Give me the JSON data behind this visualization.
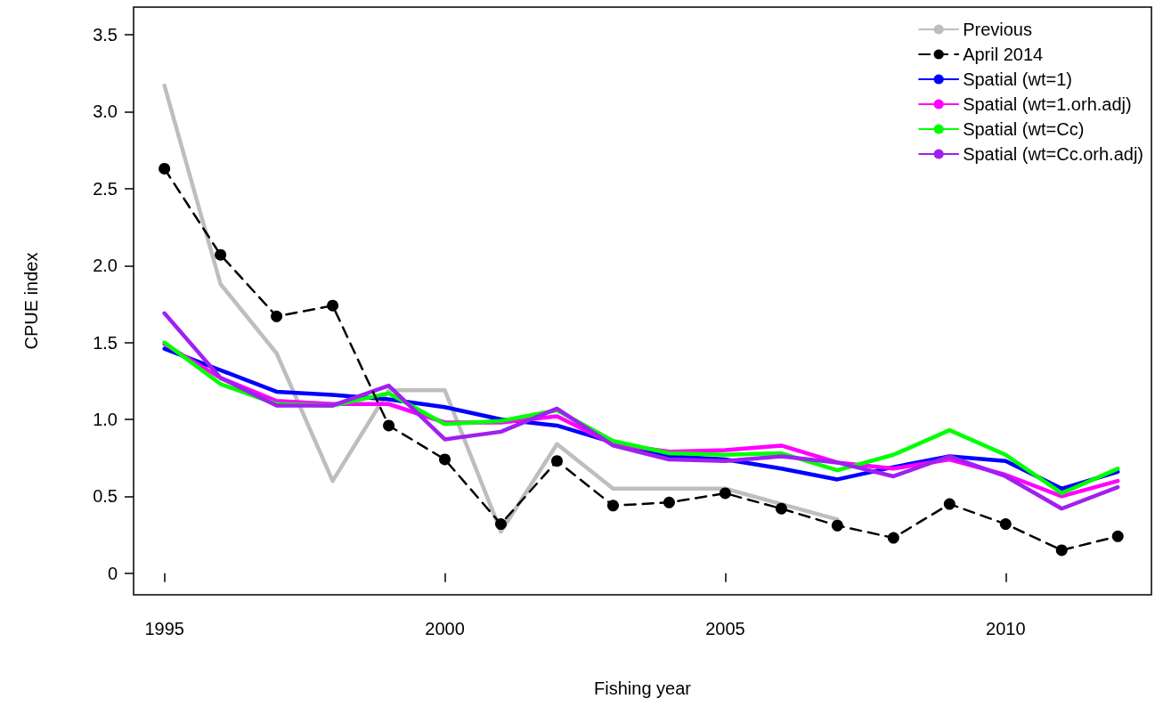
{
  "chart_data": {
    "type": "line",
    "xlabel": "Fishing year",
    "ylabel": "CPUE index",
    "xlim": [
      1994.45,
      2012.6
    ],
    "xticks": [
      1995,
      2000,
      2005,
      2010
    ],
    "ylim": [
      -0.14,
      3.68
    ],
    "yticks": [
      0,
      {
        "value": 0.5,
        "label": "0.5"
      },
      {
        "value": 1,
        "label": "1.0"
      },
      {
        "value": 1.5,
        "label": "1.5"
      },
      {
        "value": 2,
        "label": "2.0"
      },
      {
        "value": 2.5,
        "label": "2.5"
      },
      {
        "value": 3,
        "label": "3.0"
      },
      {
        "value": 3.5,
        "label": "3.5"
      }
    ],
    "grid": false,
    "legend": "top right",
    "marker": "none",
    "line_style": "solid",
    "x": [
      1995,
      1996,
      1997,
      1998,
      1999,
      2000,
      2001,
      2002,
      2003,
      2004,
      2005,
      2006,
      2007,
      2008,
      2009,
      2010,
      2011,
      2012
    ],
    "series": [
      {
        "name": "Previous",
        "color": "#bebebe",
        "values": [
          3.17,
          1.88,
          1.43,
          0.6,
          1.19,
          1.19,
          0.27,
          0.84,
          0.55,
          0.55,
          0.55,
          0.45,
          0.35,
          null,
          null,
          null,
          null,
          null
        ]
      },
      {
        "name": "April 2014",
        "color": "#000000",
        "marker": "circle",
        "line_style": "dashed",
        "values": [
          2.63,
          2.07,
          1.67,
          1.74,
          0.96,
          0.74,
          0.32,
          0.73,
          0.44,
          0.46,
          0.52,
          0.42,
          0.31,
          0.23,
          0.45,
          0.32,
          0.15,
          0.24
        ]
      },
      {
        "name": "Spatial (wt=1)",
        "color": "#0000ff",
        "values": [
          1.46,
          1.32,
          1.18,
          1.16,
          1.13,
          1.08,
          1.0,
          0.96,
          0.85,
          0.76,
          0.74,
          0.68,
          0.61,
          0.69,
          0.76,
          0.73,
          0.55,
          0.66
        ]
      },
      {
        "name": "Spatial (wt=1.orh.adj)",
        "color": "#ff00ff",
        "values": [
          1.49,
          1.27,
          1.12,
          1.1,
          1.1,
          0.98,
          0.98,
          1.02,
          0.84,
          0.79,
          0.8,
          0.83,
          0.72,
          0.68,
          0.74,
          0.64,
          0.5,
          0.6
        ]
      },
      {
        "name": "Spatial (wt=Cc)",
        "color": "#00ff00",
        "values": [
          1.5,
          1.23,
          1.1,
          1.09,
          1.17,
          0.97,
          0.99,
          1.06,
          0.86,
          0.78,
          0.77,
          0.78,
          0.67,
          0.77,
          0.93,
          0.77,
          0.52,
          0.68
        ]
      },
      {
        "name": "Spatial (wt=Cc.orh.adj)",
        "color": "#a020f0",
        "values": [
          1.69,
          1.27,
          1.09,
          1.09,
          1.22,
          0.87,
          0.92,
          1.07,
          0.83,
          0.74,
          0.73,
          0.76,
          0.72,
          0.63,
          0.76,
          0.63,
          0.42,
          0.56
        ]
      }
    ]
  }
}
